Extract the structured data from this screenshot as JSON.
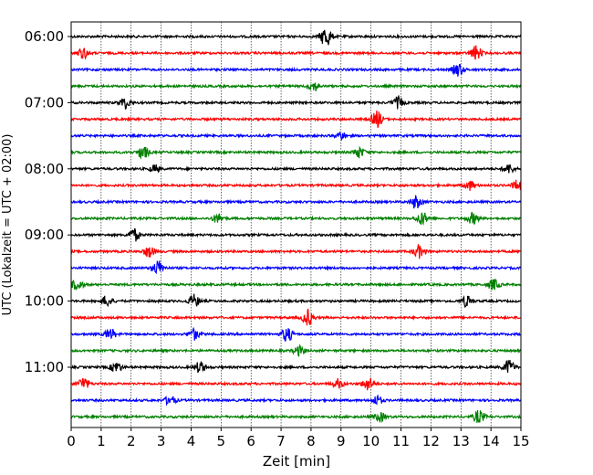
{
  "chart_data": {
    "type": "line",
    "title": "",
    "xlabel": "Zeit  [min]",
    "ylabel": "UTC (Lokalzeit = UTC + 02:00)",
    "xlim": [
      0,
      15
    ],
    "x_ticks": [
      0,
      1,
      2,
      3,
      4,
      5,
      6,
      7,
      8,
      9,
      10,
      11,
      12,
      13,
      14,
      15
    ],
    "x_tick_labels": [
      "0",
      "1",
      "2",
      "3",
      "4",
      "5",
      "6",
      "7",
      "8",
      "9",
      "10",
      "11",
      "12",
      "13",
      "14",
      "15"
    ],
    "y_ticks": [
      "06:00",
      "07:00",
      "08:00",
      "09:00",
      "10:00",
      "11:00"
    ],
    "vertical_grid": true,
    "trace_interval_minutes": 15,
    "color_cycle": [
      "#000000",
      "#ff0000",
      "#0000ff",
      "#008000"
    ],
    "traces": [
      {
        "start": "06:00",
        "color": "#000000",
        "events": [
          [
            8.5,
            12
          ]
        ]
      },
      {
        "start": "06:15",
        "color": "#ff0000",
        "events": [
          [
            0.4,
            6
          ],
          [
            13.5,
            8
          ]
        ]
      },
      {
        "start": "06:30",
        "color": "#0000ff",
        "events": [
          [
            12.9,
            7
          ]
        ]
      },
      {
        "start": "06:45",
        "color": "#008000",
        "events": [
          [
            8.1,
            5
          ]
        ]
      },
      {
        "start": "07:00",
        "color": "#000000",
        "events": [
          [
            1.8,
            6
          ],
          [
            10.9,
            6
          ]
        ]
      },
      {
        "start": "07:15",
        "color": "#ff0000",
        "events": [
          [
            10.2,
            9
          ]
        ]
      },
      {
        "start": "07:30",
        "color": "#0000ff",
        "events": [
          [
            9.0,
            4
          ]
        ]
      },
      {
        "start": "07:45",
        "color": "#008000",
        "events": [
          [
            2.4,
            7
          ],
          [
            9.6,
            6
          ]
        ]
      },
      {
        "start": "08:00",
        "color": "#000000",
        "events": [
          [
            2.8,
            4
          ],
          [
            14.6,
            5
          ]
        ]
      },
      {
        "start": "08:15",
        "color": "#ff0000",
        "events": [
          [
            13.3,
            5
          ],
          [
            14.9,
            6
          ]
        ]
      },
      {
        "start": "08:30",
        "color": "#0000ff",
        "events": [
          [
            11.5,
            7
          ]
        ]
      },
      {
        "start": "08:45",
        "color": "#008000",
        "events": [
          [
            4.9,
            5
          ],
          [
            11.7,
            7
          ],
          [
            13.4,
            6
          ]
        ]
      },
      {
        "start": "09:00",
        "color": "#000000",
        "events": [
          [
            2.1,
            7
          ]
        ]
      },
      {
        "start": "09:15",
        "color": "#ff0000",
        "events": [
          [
            2.6,
            6
          ],
          [
            11.6,
            7
          ]
        ]
      },
      {
        "start": "09:30",
        "color": "#0000ff",
        "events": [
          [
            2.9,
            8
          ]
        ]
      },
      {
        "start": "09:45",
        "color": "#008000",
        "events": [
          [
            0.2,
            6
          ],
          [
            14.1,
            6
          ]
        ]
      },
      {
        "start": "10:00",
        "color": "#000000",
        "events": [
          [
            1.2,
            6
          ],
          [
            4.1,
            7
          ],
          [
            13.2,
            6
          ]
        ]
      },
      {
        "start": "10:15",
        "color": "#ff0000",
        "events": [
          [
            7.9,
            9
          ]
        ]
      },
      {
        "start": "10:30",
        "color": "#0000ff",
        "events": [
          [
            1.3,
            6
          ],
          [
            4.1,
            6
          ],
          [
            7.2,
            8
          ]
        ]
      },
      {
        "start": "10:45",
        "color": "#008000",
        "events": [
          [
            7.6,
            5
          ]
        ]
      },
      {
        "start": "11:00",
        "color": "#000000",
        "events": [
          [
            1.5,
            6
          ],
          [
            4.3,
            6
          ],
          [
            14.6,
            8
          ]
        ]
      },
      {
        "start": "11:15",
        "color": "#ff0000",
        "events": [
          [
            0.4,
            7
          ],
          [
            8.9,
            5
          ],
          [
            9.9,
            7
          ]
        ]
      },
      {
        "start": "11:30",
        "color": "#0000ff",
        "events": [
          [
            3.3,
            5
          ],
          [
            10.2,
            5
          ]
        ]
      },
      {
        "start": "11:45",
        "color": "#008000",
        "events": [
          [
            10.3,
            5
          ],
          [
            13.6,
            7
          ]
        ]
      }
    ]
  }
}
